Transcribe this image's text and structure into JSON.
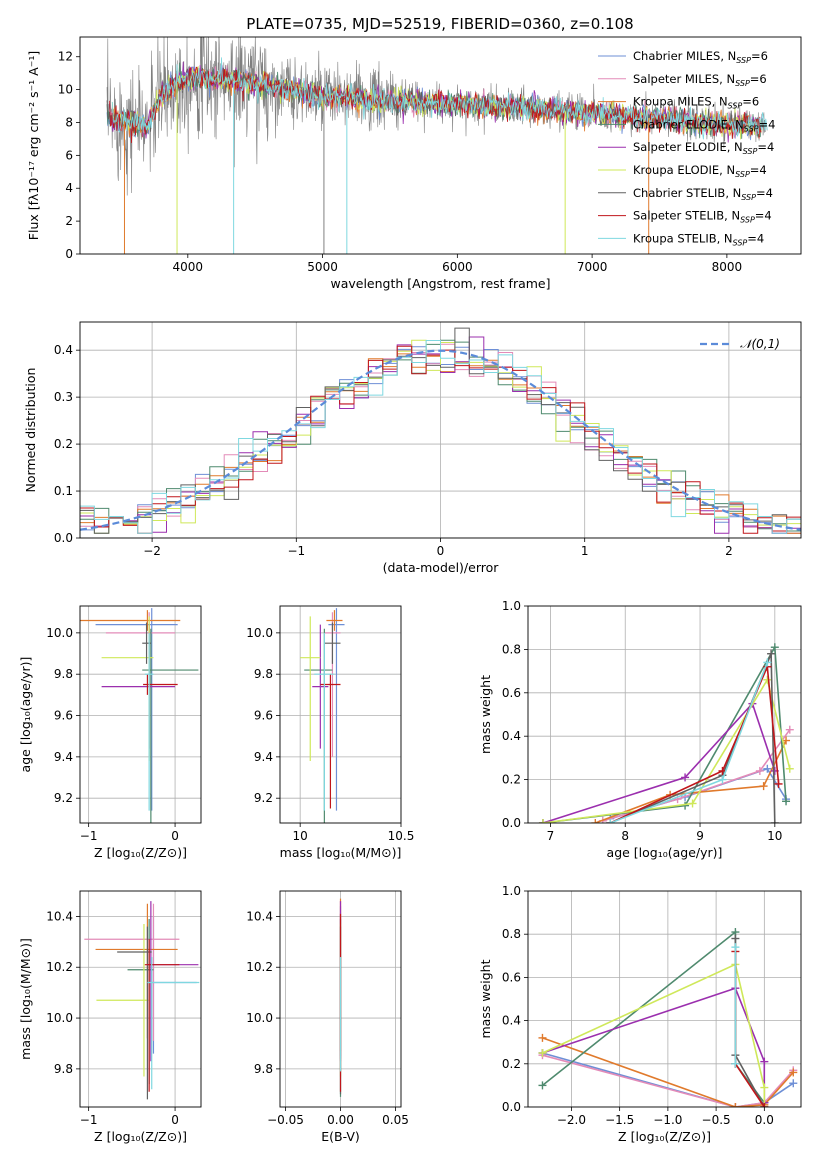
{
  "figure": {
    "title": "PLATE=0735, MJD=52519, FIBERID=0360, z=0.108"
  },
  "series_meta": [
    {
      "name": "Chabrier MILES",
      "nssp": "6",
      "color": "#6e8fd6"
    },
    {
      "name": "Salpeter MILES",
      "nssp": "6",
      "color": "#e38bb8"
    },
    {
      "name": "Kroupa MILES",
      "nssp": "6",
      "color": "#e07a2c"
    },
    {
      "name": "Chabrier ELODIE",
      "nssp": "4",
      "color": "#4f8a6e"
    },
    {
      "name": "Salpeter ELODIE",
      "nssp": "4",
      "color": "#9b2fae"
    },
    {
      "name": "Kroupa ELODIE",
      "nssp": "4",
      "color": "#cfe85a"
    },
    {
      "name": "Chabrier STELIB",
      "nssp": "4",
      "color": "#606060"
    },
    {
      "name": "Salpeter STELIB",
      "nssp": "4",
      "color": "#c0161b"
    },
    {
      "name": "Kroupa STELIB",
      "nssp": "4",
      "color": "#7fd8e0"
    }
  ],
  "chart_data": [
    {
      "id": "spectrum",
      "type": "line",
      "xlabel": "wavelength [Angstrom, rest frame]",
      "ylabel": "Flux [fλ10⁻¹⁷ erg cm⁻² s⁻¹ A⁻¹]",
      "xlim": [
        3200,
        8550
      ],
      "ylim": [
        0,
        13.2
      ],
      "xticks": [
        4000,
        5000,
        6000,
        7000,
        8000
      ],
      "yticks": [
        0,
        2,
        4,
        6,
        8,
        10,
        12
      ],
      "grid": false,
      "legend": "top-right",
      "data_range": [
        3400,
        8300
      ],
      "continuum": [
        [
          3400,
          8.3
        ],
        [
          3700,
          7.8
        ],
        [
          3800,
          9.6
        ],
        [
          4000,
          10.8
        ],
        [
          4300,
          10.6
        ],
        [
          4600,
          10.2
        ],
        [
          5000,
          9.6
        ],
        [
          5500,
          9.3
        ],
        [
          6000,
          9.1
        ],
        [
          6500,
          8.9
        ],
        [
          7000,
          8.6
        ],
        [
          7500,
          8.2
        ],
        [
          8300,
          7.7
        ]
      ],
      "absorption_lines": [
        3530,
        3920,
        4340,
        5010,
        5180,
        6800,
        7420
      ]
    },
    {
      "id": "residuals",
      "type": "step",
      "xlabel": "(data-model)/error",
      "ylabel": "Normed distribution",
      "xlim": [
        -2.5,
        2.5
      ],
      "ylim": [
        0,
        0.46
      ],
      "xticks": [
        -2,
        -1,
        0,
        1,
        2
      ],
      "yticks": [
        0,
        0.1,
        0.2,
        0.3,
        0.4
      ],
      "grid": true,
      "legend": "top-right",
      "reference": {
        "name": "𝒩(0,1)",
        "mean": 0,
        "sigma": 1,
        "color": "#5b8bd9"
      },
      "bin_width": 0.1
    },
    {
      "id": "z_age",
      "type": "errorbar",
      "xlabel": "Z [log₁₀(Z/Z⊙)]",
      "ylabel": "age  [log₁₀(age/yr)]",
      "xlim": [
        -1.1,
        0.3
      ],
      "ylim": [
        9.08,
        10.13
      ],
      "xticks": [
        -1,
        0
      ],
      "yticks": [
        9.2,
        9.4,
        9.6,
        9.8,
        10.0
      ],
      "grid": true,
      "points": [
        {
          "x": -0.27,
          "y": 10.04,
          "xerr": [
            0.65,
            0.3
          ],
          "yerr": [
            0.9,
            0.08
          ]
        },
        {
          "x": -0.3,
          "y": 10.0,
          "xerr": [
            0.5,
            0.3
          ],
          "yerr": [
            0.6,
            0.1
          ]
        },
        {
          "x": -0.32,
          "y": 10.06,
          "xerr": [
            1.0,
            0.38
          ],
          "yerr": [
            0.05,
            0.05
          ]
        },
        {
          "x": -0.28,
          "y": 9.82,
          "xerr": [
            0.1,
            0.55
          ],
          "yerr": [
            0.8,
            0.2
          ]
        },
        {
          "x": -0.3,
          "y": 9.74,
          "xerr": [
            0.55,
            0.3
          ],
          "yerr": [
            0.3,
            0.3
          ]
        },
        {
          "x": -0.3,
          "y": 9.88,
          "xerr": [
            0.55,
            0.05
          ],
          "yerr": [
            0.5,
            0.2
          ]
        },
        {
          "x": -0.33,
          "y": 9.95,
          "xerr": [
            0.05,
            0.05
          ],
          "yerr": [
            0.1,
            0.1
          ]
        },
        {
          "x": -0.32,
          "y": 9.75,
          "xerr": [
            0.05,
            0.35
          ],
          "yerr": [
            0.05,
            0.05
          ]
        },
        {
          "x": -0.3,
          "y": 9.8,
          "xerr": [
            0.05,
            0.05
          ],
          "yerr": [
            0.66,
            0.2
          ]
        }
      ]
    },
    {
      "id": "mass_age",
      "type": "errorbar",
      "xlabel": "mass [log₁₀(M/M⊙)]",
      "ylabel": "",
      "xlim": [
        9.9,
        10.5
      ],
      "ylim": [
        9.08,
        10.13
      ],
      "xticks": [
        10,
        10.5
      ],
      "yticks": [
        9.2,
        9.4,
        9.6,
        9.8,
        10.0
      ],
      "grid": true,
      "points": [
        {
          "x": 10.18,
          "y": 10.04,
          "xerr": [
            0.04,
            0.04
          ],
          "yerr": [
            0.9,
            0.08
          ]
        },
        {
          "x": 10.16,
          "y": 10.0,
          "xerr": [
            0.04,
            0.04
          ],
          "yerr": [
            0.6,
            0.1
          ]
        },
        {
          "x": 10.17,
          "y": 10.06,
          "xerr": [
            0.04,
            0.04
          ],
          "yerr": [
            0.05,
            0.05
          ]
        },
        {
          "x": 10.12,
          "y": 9.82,
          "xerr": [
            0.1,
            0.04
          ],
          "yerr": [
            0.8,
            0.2
          ]
        },
        {
          "x": 10.1,
          "y": 9.74,
          "xerr": [
            0.04,
            0.04
          ],
          "yerr": [
            0.3,
            0.3
          ]
        },
        {
          "x": 10.05,
          "y": 9.88,
          "xerr": [
            0.05,
            0.05
          ],
          "yerr": [
            0.5,
            0.2
          ]
        },
        {
          "x": 10.16,
          "y": 9.95,
          "xerr": [
            0.04,
            0.04
          ],
          "yerr": [
            0.1,
            0.1
          ]
        },
        {
          "x": 10.15,
          "y": 9.75,
          "xerr": [
            0.05,
            0.05
          ],
          "yerr": [
            0.6,
            0.05
          ]
        },
        {
          "x": 10.12,
          "y": 9.8,
          "xerr": [
            0.05,
            0.05
          ],
          "yerr": [
            0.66,
            0.2
          ]
        }
      ]
    },
    {
      "id": "weight_age",
      "type": "line",
      "xlabel": "age  [log₁₀(age/yr)]",
      "ylabel": "mass weight",
      "xlim": [
        6.7,
        10.35
      ],
      "ylim": [
        0,
        1
      ],
      "xticks": [
        7,
        8,
        9,
        10
      ],
      "yticks": [
        0,
        0.2,
        0.4,
        0.6,
        0.8,
        1.0
      ],
      "grid": true,
      "series": [
        {
          "x": [
            7.8,
            8.8,
            9.9,
            10.15
          ],
          "y": [
            0.02,
            0.12,
            0.25,
            0.11
          ]
        },
        {
          "x": [
            7.7,
            8.7,
            9.8,
            10.2
          ],
          "y": [
            0.01,
            0.11,
            0.24,
            0.43
          ]
        },
        {
          "x": [
            7.6,
            8.6,
            9.85,
            10.15
          ],
          "y": [
            0.0,
            0.13,
            0.17,
            0.38
          ]
        },
        {
          "x": [
            6.9,
            8.8,
            10.0,
            10.15
          ],
          "y": [
            0.0,
            0.08,
            0.81,
            0.1
          ]
        },
        {
          "x": [
            6.9,
            8.8,
            9.7,
            10.0
          ],
          "y": [
            0.0,
            0.21,
            0.55,
            0.24
          ]
        },
        {
          "x": [
            6.9,
            8.9,
            9.9,
            10.2
          ],
          "y": [
            0.0,
            0.09,
            0.66,
            0.25
          ]
        },
        {
          "x": [
            7.8,
            9.3,
            9.95,
            10.0
          ],
          "y": [
            0.0,
            0.22,
            0.78,
            0.0
          ]
        },
        {
          "x": [
            7.8,
            9.3,
            9.9,
            10.05
          ],
          "y": [
            0.0,
            0.24,
            0.72,
            0.18
          ]
        },
        {
          "x": [
            7.8,
            9.3,
            9.9
          ],
          "y": [
            0.0,
            0.2,
            0.74
          ]
        }
      ]
    },
    {
      "id": "z_mass",
      "type": "errorbar",
      "xlabel": "Z [log₁₀(Z/Z⊙)]",
      "ylabel": "mass [log₁₀(M/M⊙)]",
      "xlim": [
        -1.1,
        0.3
      ],
      "ylim": [
        9.65,
        10.5
      ],
      "xticks": [
        -1,
        0
      ],
      "yticks": [
        9.8,
        10.0,
        10.2,
        10.4
      ],
      "grid": true,
      "points": [
        {
          "x": -0.25,
          "y": 10.14,
          "xerr": [
            0.05,
            0.5
          ],
          "yerr": [
            0.28,
            0.26
          ]
        },
        {
          "x": -0.25,
          "y": 10.31,
          "xerr": [
            0.8,
            0.3
          ],
          "yerr": [
            0.4,
            0.14
          ]
        },
        {
          "x": -0.32,
          "y": 10.27,
          "xerr": [
            0.6,
            0.35
          ],
          "yerr": [
            0.35,
            0.18
          ]
        },
        {
          "x": -0.3,
          "y": 10.19,
          "xerr": [
            0.25,
            0.05
          ],
          "yerr": [
            0.45,
            0.2
          ]
        },
        {
          "x": -0.28,
          "y": 10.21,
          "xerr": [
            0.05,
            0.55
          ],
          "yerr": [
            0.38,
            0.25
          ]
        },
        {
          "x": -0.36,
          "y": 10.07,
          "xerr": [
            0.55,
            0.05
          ],
          "yerr": [
            0.3,
            0.3
          ]
        },
        {
          "x": -0.32,
          "y": 10.26,
          "xerr": [
            0.35,
            0.05
          ],
          "yerr": [
            0.58,
            0.1
          ]
        },
        {
          "x": -0.3,
          "y": 10.21,
          "xerr": [
            0.05,
            0.35
          ],
          "yerr": [
            0.5,
            0.1
          ]
        },
        {
          "x": -0.27,
          "y": 10.14,
          "xerr": [
            0.05,
            0.55
          ],
          "yerr": [
            0.42,
            0.1
          ]
        }
      ]
    },
    {
      "id": "ebv_mass",
      "type": "errorbar",
      "xlabel": "E(B-V)",
      "ylabel": "",
      "xlim": [
        -0.055,
        0.055
      ],
      "ylim": [
        9.65,
        10.5
      ],
      "xticks": [
        -0.05,
        0,
        0.05
      ],
      "yticks": [
        9.8,
        10.0,
        10.2,
        10.4
      ],
      "grid": true,
      "points": [
        {
          "x": 0,
          "y": 10.14,
          "xerr": [
            0,
            0
          ],
          "yerr": [
            0.3,
            0.3
          ]
        },
        {
          "x": 0,
          "y": 10.3,
          "xerr": [
            0,
            0
          ],
          "yerr": [
            0.45,
            0.16
          ]
        },
        {
          "x": 0,
          "y": 10.27,
          "xerr": [
            0,
            0
          ],
          "yerr": [
            0.4,
            0.2
          ]
        },
        {
          "x": 0,
          "y": 10.19,
          "xerr": [
            0,
            0
          ],
          "yerr": [
            0.5,
            0.2
          ]
        },
        {
          "x": 0,
          "y": 10.21,
          "xerr": [
            0,
            0
          ],
          "yerr": [
            0.38,
            0.25
          ]
        },
        {
          "x": 0,
          "y": 10.07,
          "xerr": [
            0,
            0
          ],
          "yerr": [
            0.3,
            0.3
          ]
        },
        {
          "x": 0,
          "y": 10.26,
          "xerr": [
            0,
            0
          ],
          "yerr": [
            0.56,
            0.1
          ]
        },
        {
          "x": 0,
          "y": 10.21,
          "xerr": [
            0,
            0
          ],
          "yerr": [
            0.5,
            0.2
          ]
        },
        {
          "x": 0,
          "y": 10.14,
          "xerr": [
            0,
            0
          ],
          "yerr": [
            0.35,
            0.1
          ]
        }
      ]
    },
    {
      "id": "weight_z",
      "type": "line",
      "xlabel": "Z [log₁₀(Z/Z⊙)]",
      "ylabel": "mass weight",
      "xlim": [
        -2.45,
        0.38
      ],
      "ylim": [
        0,
        1
      ],
      "xticks": [
        -2.0,
        -1.5,
        -1.0,
        -0.5,
        0.0
      ],
      "yticks": [
        0,
        0.2,
        0.4,
        0.6,
        0.8,
        1.0
      ],
      "grid": true,
      "series": [
        {
          "x": [
            -2.3,
            -0.3,
            0.0,
            0.3
          ],
          "y": [
            0.25,
            0.0,
            0.02,
            0.11
          ]
        },
        {
          "x": [
            -2.3,
            -0.3,
            0.0,
            0.3
          ],
          "y": [
            0.24,
            0.0,
            0.02,
            0.17
          ]
        },
        {
          "x": [
            -2.3,
            -0.3,
            0.0,
            0.3
          ],
          "y": [
            0.32,
            0.0,
            0.01,
            0.16
          ]
        },
        {
          "x": [
            -2.3,
            -0.3,
            -0.3,
            0.0
          ],
          "y": [
            0.1,
            0.81,
            0.2,
            0.02
          ]
        },
        {
          "x": [
            -2.3,
            -0.3,
            0.0,
            0.0
          ],
          "y": [
            0.25,
            0.55,
            0.21,
            0.02
          ]
        },
        {
          "x": [
            -2.3,
            -0.3,
            0.0,
            0.0
          ],
          "y": [
            0.25,
            0.66,
            0.09,
            0.0
          ]
        },
        {
          "x": [
            -0.3,
            -0.3,
            0.0
          ],
          "y": [
            0.78,
            0.24,
            0.0
          ]
        },
        {
          "x": [
            -0.3,
            -0.3,
            0.0
          ],
          "y": [
            0.72,
            0.2,
            0.0
          ]
        },
        {
          "x": [
            -0.3,
            -0.3
          ],
          "y": [
            0.74,
            0.2
          ]
        }
      ]
    }
  ]
}
